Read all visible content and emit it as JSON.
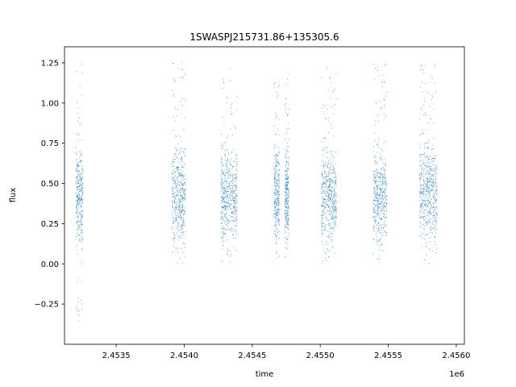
{
  "chart_data": {
    "type": "scatter",
    "title": "1SWASPJ215731.86+135305.6",
    "xlabel": "time",
    "ylabel": "flux",
    "x_offset_label": "1e6",
    "xlim": [
      2453120,
      2456060
    ],
    "ylim": [
      -0.5,
      1.35
    ],
    "x_ticks": [
      {
        "value": 2453500,
        "label": "2.4535"
      },
      {
        "value": 2454000,
        "label": "2.4540"
      },
      {
        "value": 2454500,
        "label": "2.4545"
      },
      {
        "value": 2455000,
        "label": "2.4550"
      },
      {
        "value": 2455500,
        "label": "2.4555"
      },
      {
        "value": 2456000,
        "label": "2.4560"
      }
    ],
    "y_ticks": [
      {
        "value": -0.25,
        "label": "−0.25"
      },
      {
        "value": 0.0,
        "label": "0.00"
      },
      {
        "value": 0.25,
        "label": "0.25"
      },
      {
        "value": 0.5,
        "label": "0.50"
      },
      {
        "value": 0.75,
        "label": "0.75"
      },
      {
        "value": 1.0,
        "label": "1.00"
      },
      {
        "value": 1.25,
        "label": "1.25"
      }
    ],
    "grid": false,
    "marker_color": "#1f77b4",
    "observing_seasons": [
      {
        "x_range": [
          2453205,
          2453255
        ],
        "y_range": [
          -0.41,
          1.25
        ],
        "y_center": 0.42
      },
      {
        "x_range": [
          2453910,
          2454010
        ],
        "y_range": [
          0.0,
          1.26
        ],
        "y_center": 0.42
      },
      {
        "x_range": [
          2454270,
          2454390
        ],
        "y_range": [
          0.0,
          1.23
        ],
        "y_center": 0.42
      },
      {
        "x_range": [
          2454660,
          2454700
        ],
        "y_range": [
          0.0,
          1.16
        ],
        "y_center": 0.42
      },
      {
        "x_range": [
          2454740,
          2454770
        ],
        "y_range": [
          0.0,
          1.19
        ],
        "y_center": 0.42
      },
      {
        "x_range": [
          2455010,
          2455120
        ],
        "y_range": [
          0.0,
          1.24
        ],
        "y_center": 0.42
      },
      {
        "x_range": [
          2455390,
          2455490
        ],
        "y_range": [
          0.0,
          1.25
        ],
        "y_center": 0.42
      },
      {
        "x_range": [
          2455730,
          2455860
        ],
        "y_range": [
          0.0,
          1.26
        ],
        "y_center": 0.45
      }
    ]
  }
}
